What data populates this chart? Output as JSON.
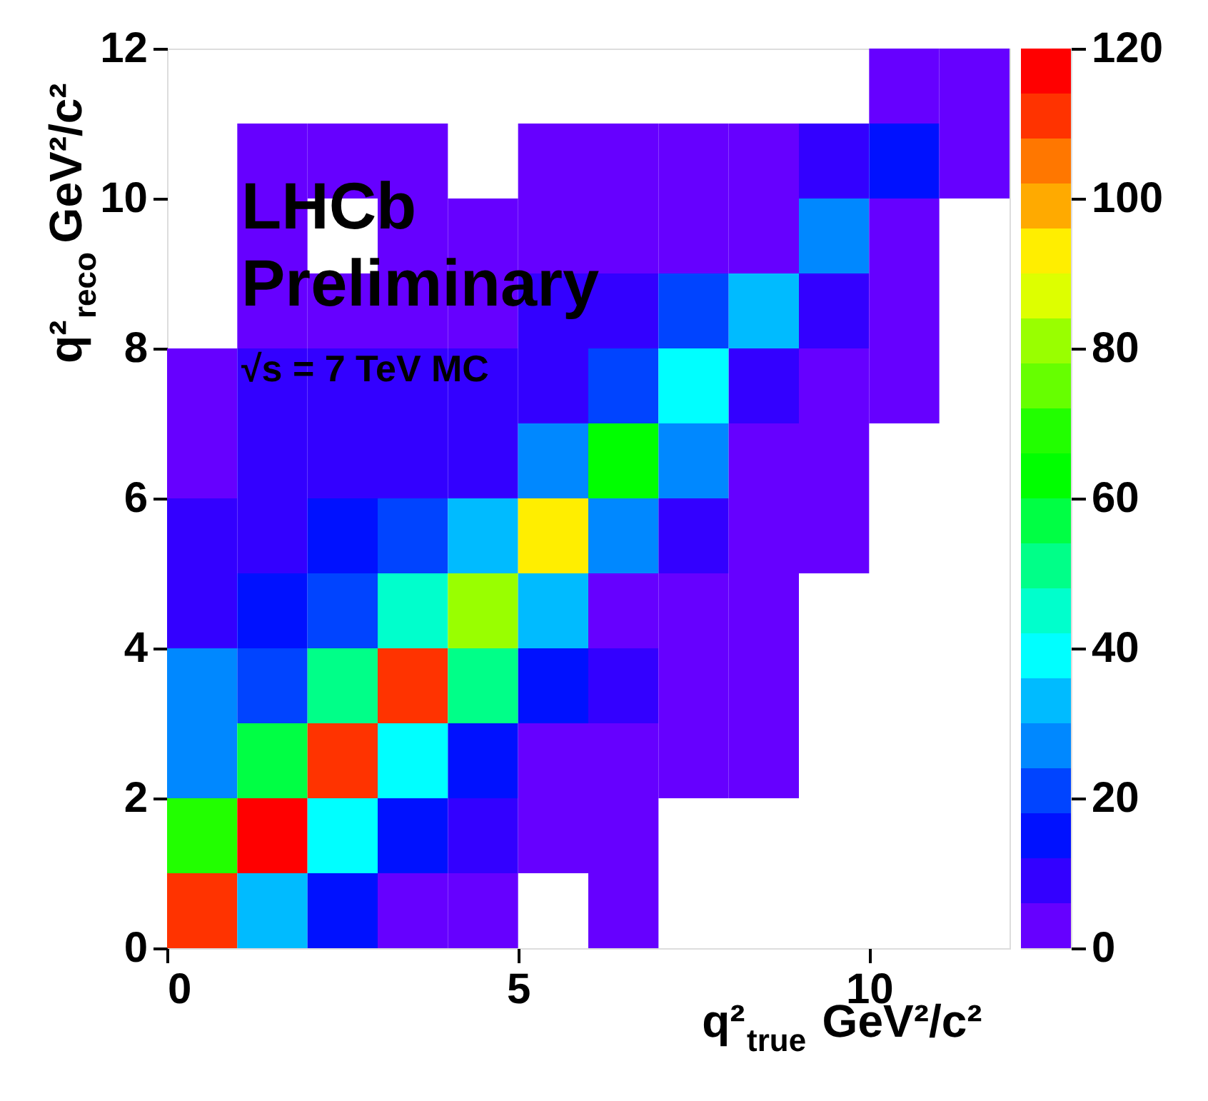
{
  "chart_data": {
    "type": "heatmap",
    "xlabel": "q²$_{true}$ GeV²/c²",
    "ylabel": "q²$_{reco}$ GeV²/c²",
    "annotations": [
      "LHCb",
      "Preliminary",
      "√s = 7 TeV MC"
    ],
    "x": [
      0.5,
      1.5,
      2.5,
      3.5,
      4.5,
      5.5,
      6.5,
      7.5,
      8.5,
      9.5,
      10.5,
      11.5
    ],
    "xlim": [
      0,
      12
    ],
    "xticks": [
      0,
      5,
      10
    ],
    "ylim": [
      0,
      12
    ],
    "yticks": [
      0,
      2,
      4,
      6,
      8,
      10,
      12
    ],
    "cells": [
      [
        null,
        null,
        null,
        null,
        null,
        null,
        null,
        null,
        null,
        null,
        3,
        3
      ],
      [
        null,
        3,
        3,
        3,
        null,
        3,
        3,
        3,
        3,
        9,
        15,
        3
      ],
      [
        null,
        3,
        null,
        3,
        3,
        3,
        3,
        3,
        3,
        27,
        3,
        null
      ],
      [
        null,
        3,
        3,
        3,
        3,
        9,
        9,
        21,
        33,
        9,
        3,
        null
      ],
      [
        3,
        9,
        9,
        9,
        9,
        9,
        21,
        39,
        9,
        3,
        3,
        null
      ],
      [
        3,
        9,
        9,
        9,
        9,
        27,
        63,
        27,
        3,
        3,
        null,
        null
      ],
      [
        9,
        9,
        15,
        21,
        33,
        93,
        27,
        9,
        3,
        3,
        null,
        null
      ],
      [
        9,
        15,
        21,
        45,
        81,
        33,
        3,
        3,
        3,
        null,
        null,
        null
      ],
      [
        27,
        21,
        51,
        111,
        51,
        15,
        9,
        3,
        3,
        null,
        null,
        null
      ],
      [
        27,
        57,
        111,
        39,
        15,
        3,
        3,
        3,
        3,
        null,
        null,
        null
      ],
      [
        69,
        117,
        39,
        15,
        9,
        3,
        3,
        null,
        null,
        null,
        null,
        null
      ],
      [
        111,
        33,
        15,
        3,
        3,
        null,
        3,
        null,
        null,
        null,
        null,
        null
      ]
    ],
    "colors": [
      "#6600ff",
      "#3300ff",
      "#0011ff",
      "#0044ff",
      "#0088ff",
      "#00bbff",
      "#00ffff",
      "#00ffcc",
      "#00ff88",
      "#00ff44",
      "#00ff00",
      "#22ff00",
      "#66ff00",
      "#99ff00",
      "#ddff00",
      "#ffee00",
      "#ffaa00",
      "#ff7700",
      "#ff3300",
      "#ff0000"
    ],
    "clim": [
      0,
      120
    ],
    "cticks": [
      0,
      20,
      40,
      60,
      80,
      100,
      120
    ],
    "grid": false
  }
}
